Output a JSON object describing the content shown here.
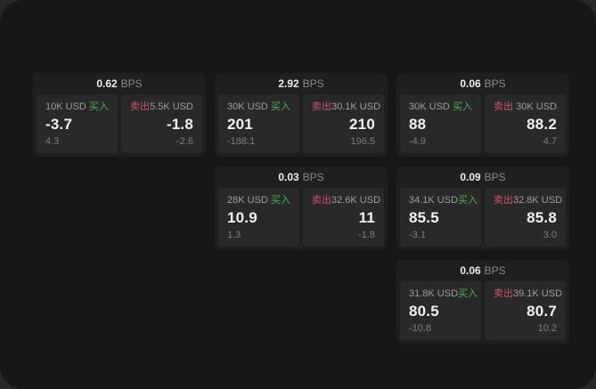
{
  "theme": {
    "backdrop": "#272727",
    "window_bg": "#171717",
    "card_bg": "#1f1f1f",
    "panel_bg": "#292929",
    "buy_color": "#4caf50",
    "sell_color": "#cd5368"
  },
  "labels": {
    "bps_unit": "BPS",
    "buy": "买入",
    "sell": "卖出"
  },
  "cards": [
    {
      "col": 1,
      "row": 1,
      "bps": "0.62",
      "buy": {
        "amount": "10K USD",
        "price": "-3.7",
        "delta": "4.3"
      },
      "sell": {
        "amount": "5.5K USD",
        "price": "-1.8",
        "delta": "-2.6"
      }
    },
    {
      "col": 2,
      "row": 1,
      "bps": "2.92",
      "buy": {
        "amount": "30K USD",
        "price": "201",
        "delta": "-188.1"
      },
      "sell": {
        "amount": "30.1K USD",
        "price": "210",
        "delta": "196.5"
      }
    },
    {
      "col": 3,
      "row": 1,
      "bps": "0.06",
      "buy": {
        "amount": "30K USD",
        "price": "88",
        "delta": "-4.9"
      },
      "sell": {
        "amount": "30K USD",
        "price": "88.2",
        "delta": "4.7"
      }
    },
    {
      "col": 2,
      "row": 2,
      "bps": "0.03",
      "buy": {
        "amount": "28K USD",
        "price": "10.9",
        "delta": "1.3"
      },
      "sell": {
        "amount": "32.6K USD",
        "price": "11",
        "delta": "-1.8"
      }
    },
    {
      "col": 3,
      "row": 2,
      "bps": "0.09",
      "buy": {
        "amount": "34.1K USD",
        "price": "85.5",
        "delta": "-3.1"
      },
      "sell": {
        "amount": "32.8K USD",
        "price": "85.8",
        "delta": "3.0"
      }
    },
    {
      "col": 3,
      "row": 3,
      "bps": "0.06",
      "buy": {
        "amount": "31.8K USD",
        "price": "80.5",
        "delta": "-10.8"
      },
      "sell": {
        "amount": "39.1K USD",
        "price": "80.7",
        "delta": "10.2"
      }
    }
  ]
}
